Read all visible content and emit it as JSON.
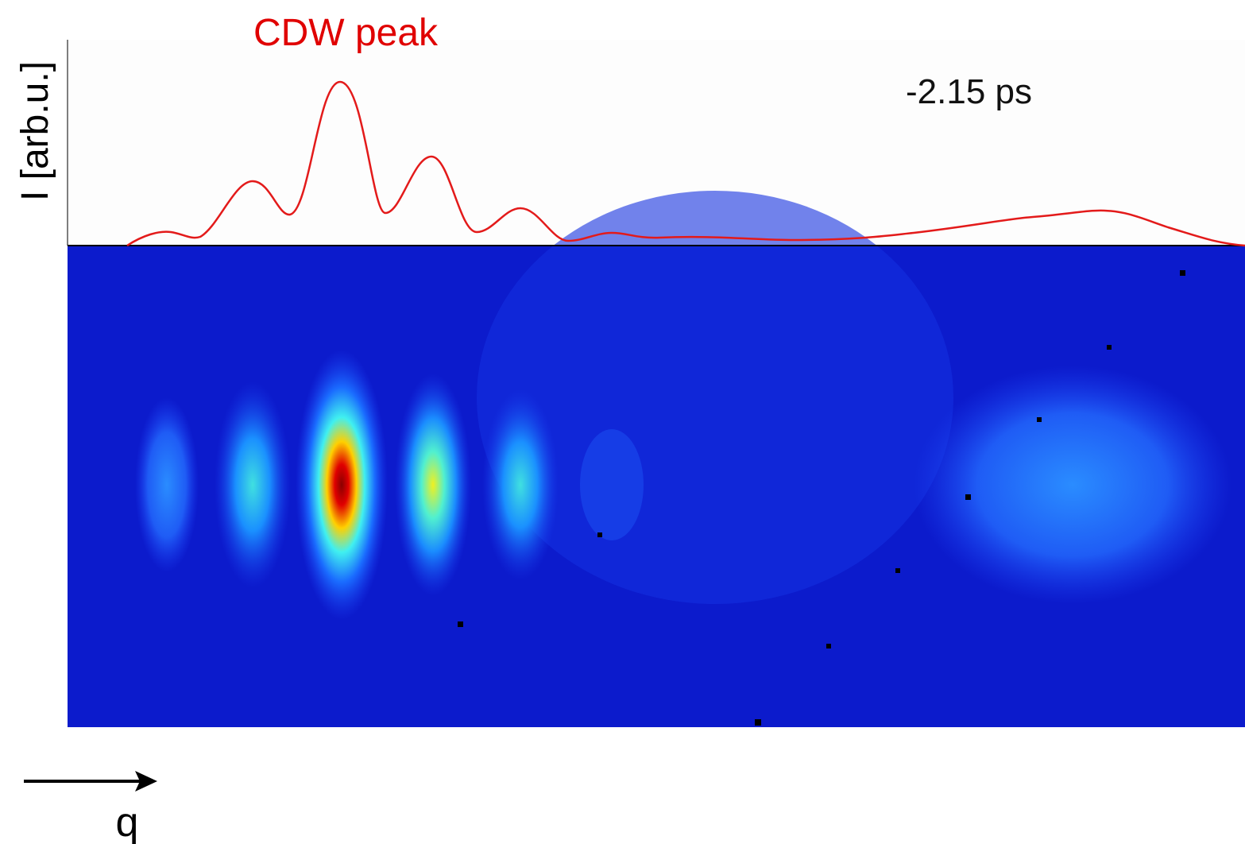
{
  "labels": {
    "peak": "CDW peak",
    "time": "-2.15 ps",
    "y_axis": "I [arb.u.]",
    "x_axis": "q"
  }
}
